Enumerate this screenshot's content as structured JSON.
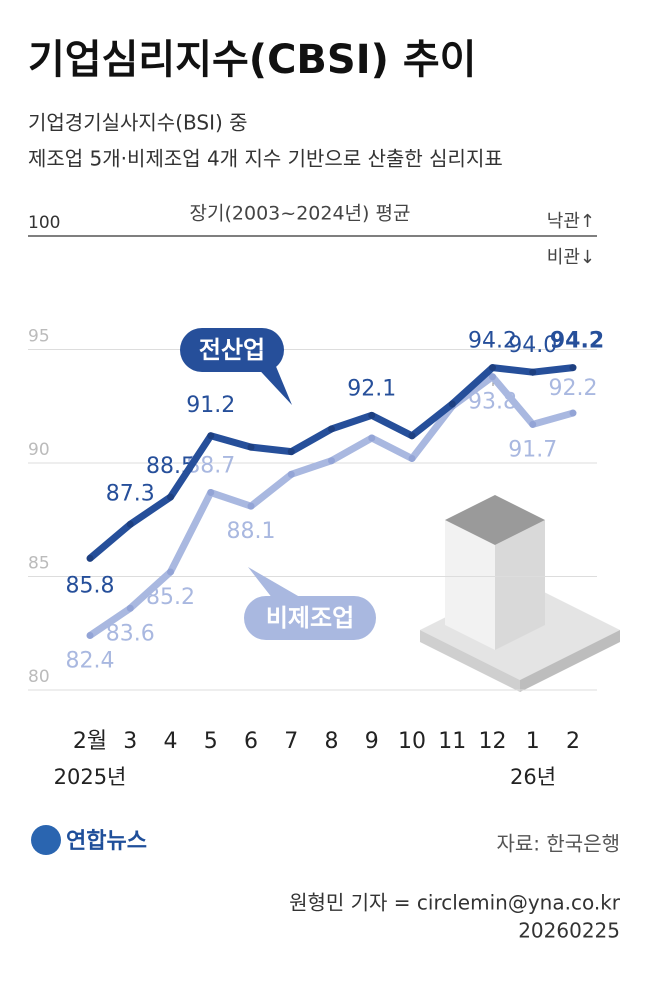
{
  "chart_data": {
    "type": "line",
    "title": "기업심리지수(CBSI) 추이",
    "subtitle": [
      "기업경기실사지수(BSI) 중",
      "제조업 5개·비제조업 4개 지수 기반으로 산출한 심리지표"
    ],
    "annotations": {
      "baseline": "장기(2003~2024년) 평균",
      "up": "낙관↑",
      "down": "비관↓"
    },
    "categories": [
      "2월",
      "3",
      "4",
      "5",
      "6",
      "7",
      "8",
      "9",
      "10",
      "11",
      "12",
      "1",
      "2"
    ],
    "year_labels": [
      "2025년",
      "26년"
    ],
    "series": [
      {
        "name": "전산업",
        "color": "#264f9a",
        "values": [
          85.8,
          87.3,
          88.5,
          91.2,
          90.7,
          90.5,
          91.5,
          92.1,
          91.2,
          92.6,
          94.2,
          94.0,
          94.2
        ],
        "value_labels": [
          "85.8",
          "87.3",
          "88.5",
          "91.2",
          null,
          null,
          null,
          "92.1",
          null,
          null,
          "94.2",
          "94.0",
          "94.2"
        ]
      },
      {
        "name": "비제조업",
        "color": "#a9b8e0",
        "values": [
          82.4,
          83.6,
          85.2,
          88.7,
          88.1,
          89.5,
          90.1,
          91.1,
          90.2,
          92.5,
          93.8,
          91.7,
          92.2
        ],
        "value_labels": [
          "82.4",
          "83.6",
          "85.2",
          "88.7",
          "88.1",
          null,
          null,
          null,
          null,
          null,
          "93.8",
          "91.7",
          "92.2"
        ]
      }
    ],
    "ylim": [
      80,
      100
    ],
    "yticks": [
      80,
      85,
      90,
      95,
      100
    ],
    "grid": true,
    "source": "자료: 한국은행",
    "logo": "연합뉴스",
    "credit": "원형민 기자 = circlemin@yna.co.kr",
    "date": "20260225"
  }
}
